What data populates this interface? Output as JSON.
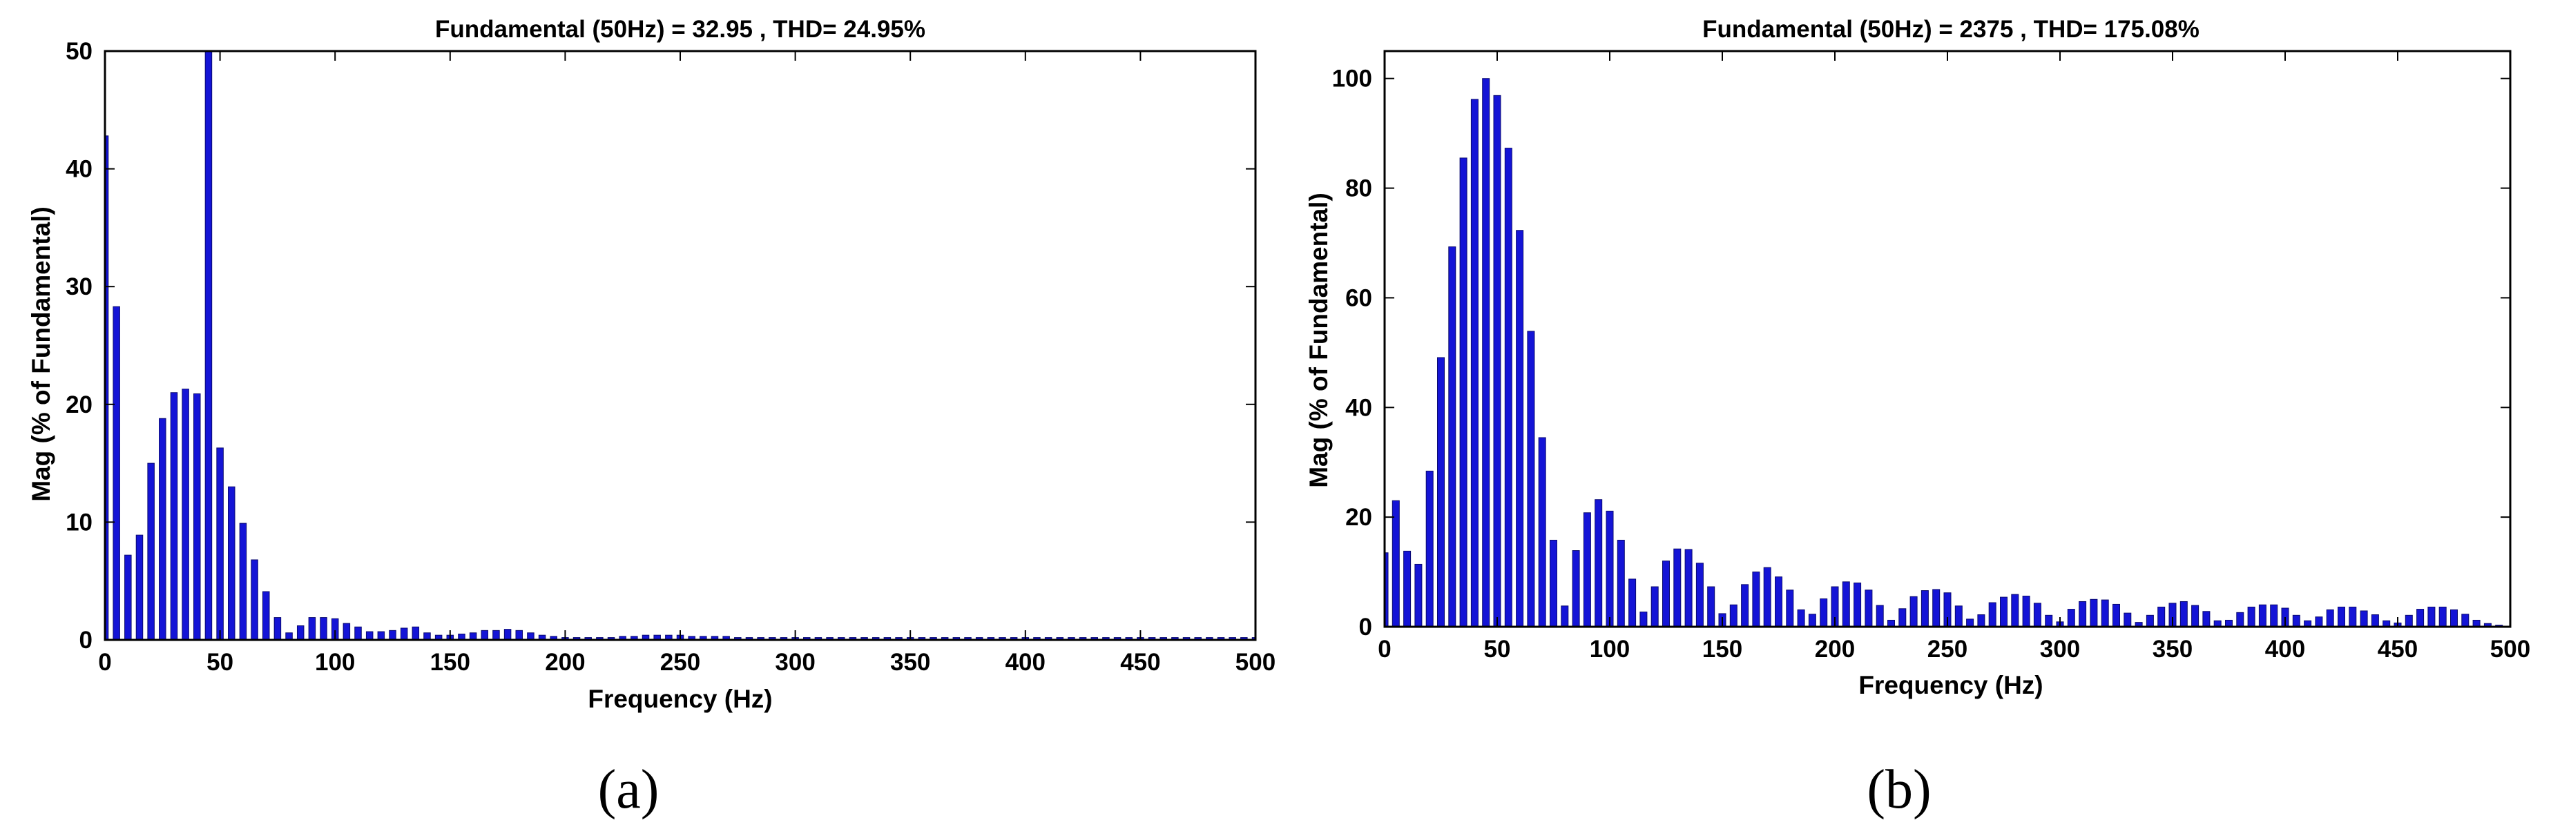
{
  "chart_data": [
    {
      "type": "bar",
      "title": "Fundamental (50Hz) = 32.95 , THD= 24.95%",
      "xlabel": "Frequency (Hz)",
      "ylabel": "Mag (% of Fundamental)",
      "caption": "(a)",
      "xlim": [
        0,
        500
      ],
      "ylim": [
        0,
        50
      ],
      "xticks": [
        "0",
        "50",
        "100",
        "150",
        "200",
        "250",
        "300",
        "350",
        "400",
        "450",
        "500"
      ],
      "yticks": [
        "0",
        "10",
        "20",
        "30",
        "40",
        "50"
      ],
      "grid": false,
      "bar_color": "#1414d6",
      "x": [
        0,
        5,
        10,
        15,
        20,
        25,
        30,
        35,
        40,
        45,
        50,
        55,
        60,
        65,
        70,
        75,
        80,
        85,
        90,
        95,
        100,
        105,
        110,
        115,
        120,
        125,
        130,
        135,
        140,
        145,
        150,
        155,
        160,
        165,
        170,
        175,
        180,
        185,
        190,
        195,
        200,
        205,
        210,
        215,
        220,
        225,
        230,
        235,
        240,
        245,
        250,
        255,
        260,
        265,
        270,
        275,
        280,
        285,
        290,
        295,
        300,
        305,
        310,
        315,
        320,
        325,
        330,
        335,
        340,
        345,
        350,
        355,
        360,
        365,
        370,
        375,
        380,
        385,
        390,
        395,
        400,
        405,
        410,
        415,
        420,
        425,
        430,
        435,
        440,
        445,
        450,
        455,
        460,
        465,
        470,
        475,
        480,
        485,
        490,
        495,
        500
      ],
      "values": [
        42.8,
        28.3,
        7.2,
        8.9,
        15.0,
        18.8,
        21.0,
        21.3,
        20.9,
        50,
        16.3,
        13.0,
        9.9,
        6.8,
        4.1,
        1.9,
        0.6,
        1.2,
        1.9,
        1.9,
        1.8,
        1.4,
        1.1,
        0.7,
        0.7,
        0.8,
        1.0,
        1.1,
        0.6,
        0.4,
        0.4,
        0.5,
        0.6,
        0.8,
        0.8,
        0.9,
        0.8,
        0.6,
        0.4,
        0.3,
        0.2,
        0.2,
        0.2,
        0.2,
        0.2,
        0.3,
        0.3,
        0.4,
        0.4,
        0.4,
        0.4,
        0.3,
        0.3,
        0.3,
        0.3,
        0.2,
        0.2,
        0.2,
        0.2,
        0.2,
        0.2,
        0.2,
        0.2,
        0.2,
        0.2,
        0.2,
        0.2,
        0.2,
        0.2,
        0.2,
        0.2,
        0.2,
        0.2,
        0.2,
        0.2,
        0.2,
        0.2,
        0.2,
        0.2,
        0.2,
        0.2,
        0.2,
        0.2,
        0.2,
        0.2,
        0.2,
        0.2,
        0.2,
        0.2,
        0.2,
        0.2,
        0.2,
        0.2,
        0.2,
        0.2,
        0.2,
        0.2,
        0.2,
        0.2,
        0.2,
        0.2
      ]
    },
    {
      "type": "bar",
      "title": "Fundamental (50Hz) = 2375 , THD= 175.08%",
      "xlabel": "Frequency (Hz)",
      "ylabel": "Mag (% of Fundamental)",
      "caption": "(b)",
      "xlim": [
        0,
        500
      ],
      "ylim": [
        0,
        105
      ],
      "xticks": [
        "0",
        "50",
        "100",
        "150",
        "200",
        "250",
        "300",
        "350",
        "400",
        "450",
        "500"
      ],
      "yticks": [
        "0",
        "20",
        "40",
        "60",
        "80",
        "100"
      ],
      "grid": false,
      "bar_color": "#1414d6",
      "x": [
        0,
        5,
        10,
        15,
        20,
        25,
        30,
        35,
        40,
        45,
        50,
        55,
        60,
        65,
        70,
        75,
        80,
        85,
        90,
        95,
        100,
        105,
        110,
        115,
        120,
        125,
        130,
        135,
        140,
        145,
        150,
        155,
        160,
        165,
        170,
        175,
        180,
        185,
        190,
        195,
        200,
        205,
        210,
        215,
        220,
        225,
        230,
        235,
        240,
        245,
        250,
        255,
        260,
        265,
        270,
        275,
        280,
        285,
        290,
        295,
        300,
        305,
        310,
        315,
        320,
        325,
        330,
        335,
        340,
        345,
        350,
        355,
        360,
        365,
        370,
        375,
        380,
        385,
        390,
        395,
        400,
        405,
        410,
        415,
        420,
        425,
        430,
        435,
        440,
        445,
        450,
        455,
        460,
        465,
        470,
        475,
        480,
        485,
        490,
        495
      ],
      "values": [
        13.5,
        23,
        13.8,
        11.4,
        28.4,
        49.1,
        69.3,
        85.5,
        96.2,
        100,
        96.9,
        87.3,
        72.3,
        53.9,
        34.5,
        15.8,
        3.8,
        13.9,
        20.8,
        23.2,
        21.1,
        15.8,
        8.7,
        2.7,
        7.3,
        12.0,
        14.2,
        14.1,
        11.6,
        7.3,
        2.4,
        4.0,
        7.7,
        10.0,
        10.8,
        9.1,
        6.7,
        3.1,
        2.3,
        5.1,
        7.3,
        8.2,
        8.0,
        6.7,
        3.9,
        1.2,
        3.3,
        5.5,
        6.6,
        6.8,
        6.2,
        3.8,
        1.4,
        2.2,
        4.4,
        5.4,
        5.9,
        5.6,
        4.3,
        2.1,
        0.9,
        3.2,
        4.6,
        5.0,
        4.9,
        4.1,
        2.5,
        0.8,
        2.1,
        3.6,
        4.3,
        4.6,
        3.9,
        2.8,
        1.1,
        1.2,
        2.6,
        3.6,
        4.0,
        4.0,
        3.4,
        2.1,
        1.1,
        1.8,
        3.1,
        3.6,
        3.6,
        2.9,
        2.2,
        1.1,
        0.7,
        2.1,
        3.2,
        3.6,
        3.6,
        3.1,
        2.3,
        1.2,
        0.6,
        0.3
      ]
    }
  ]
}
